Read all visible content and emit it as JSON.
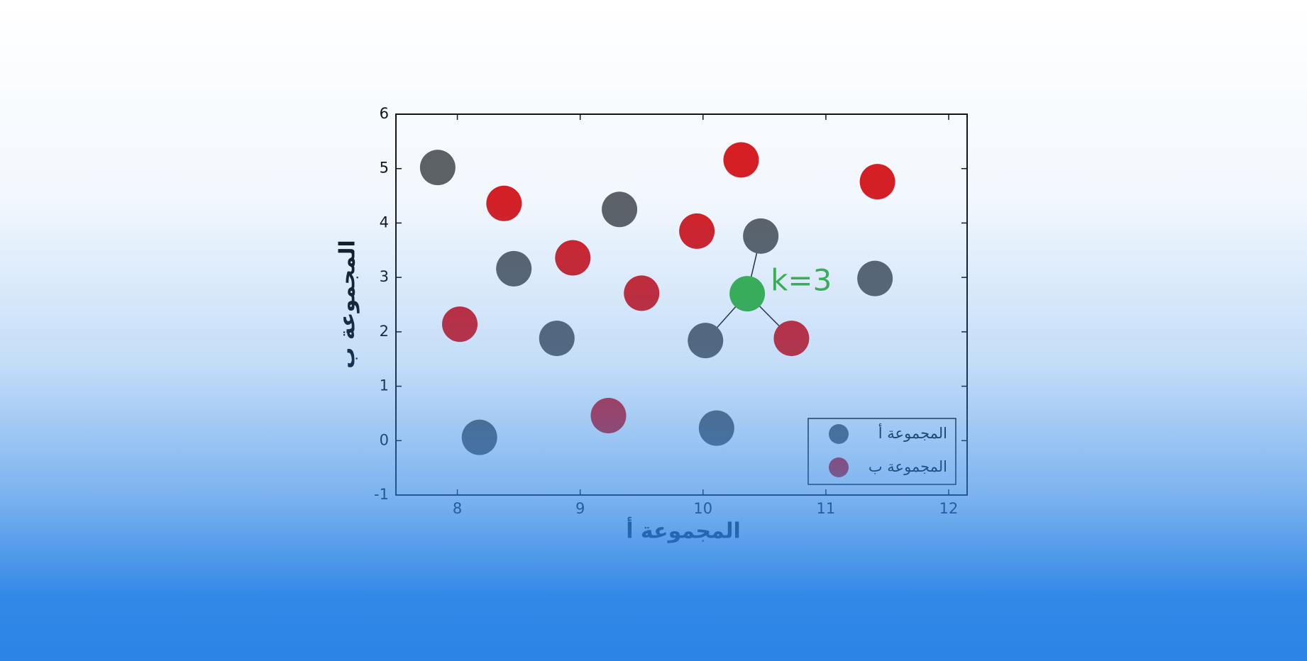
{
  "chart_data": {
    "type": "scatter",
    "xlabel": "المجموعة أ",
    "ylabel": "المجموعة ب",
    "xlim": [
      7.5,
      12.15
    ],
    "ylim": [
      -1,
      6
    ],
    "xticks": [
      8,
      9,
      10,
      11,
      12
    ],
    "yticks": [
      -1,
      0,
      1,
      2,
      3,
      4,
      5,
      6
    ],
    "legend": "lower right",
    "series": [
      {
        "name": "المجموعة أ",
        "color": "#5f5f5f",
        "x": [
          7.84,
          8.46,
          9.32,
          8.81,
          8.18,
          10.02,
          10.11,
          10.47,
          11.4
        ],
        "values": [
          5.02,
          3.16,
          4.25,
          1.88,
          0.06,
          1.84,
          0.23,
          3.76,
          2.98
        ]
      },
      {
        "name": "المجموعة ب",
        "color": "#dd1a1a",
        "x": [
          8.38,
          8.94,
          9.5,
          8.02,
          9.23,
          9.95,
          10.31,
          11.42,
          10.72
        ],
        "values": [
          4.36,
          3.36,
          2.71,
          2.14,
          0.46,
          3.85,
          5.16,
          4.76,
          1.88
        ]
      }
    ],
    "query": {
      "x": 10.36,
      "y": 2.7,
      "color": "#3cb53c"
    },
    "annotation": "k=3"
  }
}
